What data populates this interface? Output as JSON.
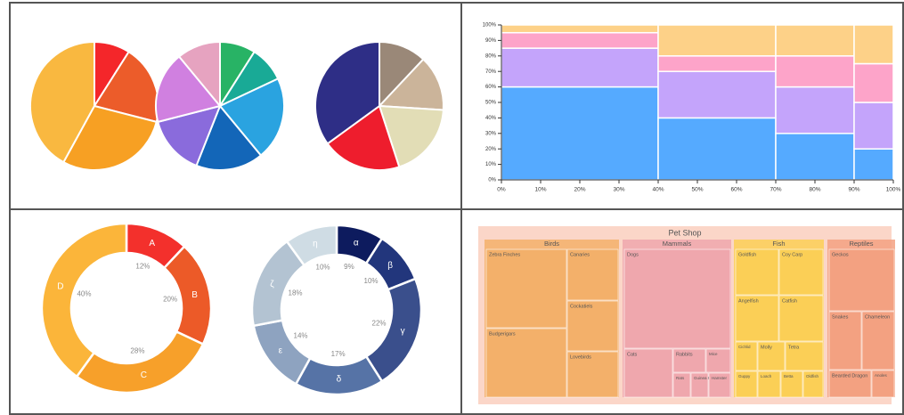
{
  "chart_data": [
    {
      "type": "pie",
      "title": "",
      "slices": [
        {
          "label": "",
          "value": 9,
          "color": "#f4262a"
        },
        {
          "label": "",
          "value": 20,
          "color": "#ec5c2a"
        },
        {
          "label": "",
          "value": 29,
          "color": "#f7a023"
        },
        {
          "label": "",
          "value": 42,
          "color": "#f9b840"
        }
      ]
    },
    {
      "type": "pie",
      "title": "",
      "slices": [
        {
          "label": "",
          "value": 9,
          "color": "#28b365"
        },
        {
          "label": "",
          "value": 9,
          "color": "#19aa96"
        },
        {
          "label": "",
          "value": 21,
          "color": "#2aa3e0"
        },
        {
          "label": "",
          "value": 17,
          "color": "#1366b8"
        },
        {
          "label": "",
          "value": 15,
          "color": "#8a6bdc"
        },
        {
          "label": "",
          "value": 18,
          "color": "#d080e0"
        },
        {
          "label": "",
          "value": 11,
          "color": "#e6a3c0"
        }
      ]
    },
    {
      "type": "pie",
      "title": "",
      "slices": [
        {
          "label": "",
          "value": 12,
          "color": "#9a8878"
        },
        {
          "label": "",
          "value": 14,
          "color": "#cbb49a"
        },
        {
          "label": "",
          "value": 19,
          "color": "#e2ddb6"
        },
        {
          "label": "",
          "value": 20,
          "color": "#ee1d2d"
        },
        {
          "label": "",
          "value": 35,
          "color": "#2e2e86"
        }
      ]
    },
    {
      "type": "bar",
      "subtype": "marimekko",
      "xlim": [
        0,
        100
      ],
      "ylim": [
        0,
        100
      ],
      "x_ticks": [
        "0%",
        "10%",
        "20%",
        "30%",
        "40%",
        "50%",
        "60%",
        "70%",
        "80%",
        "90%",
        "100%"
      ],
      "y_ticks": [
        "0%",
        "10%",
        "20%",
        "30%",
        "40%",
        "50%",
        "60%",
        "70%",
        "80%",
        "90%",
        "100%"
      ],
      "grid": false,
      "columns": [
        {
          "width": 40,
          "segments": [
            60,
            25,
            10,
            5
          ]
        },
        {
          "width": 30,
          "segments": [
            40,
            30,
            10,
            20
          ]
        },
        {
          "width": 20,
          "segments": [
            30,
            30,
            20,
            20
          ]
        },
        {
          "width": 10,
          "segments": [
            20,
            30,
            25,
            25
          ]
        }
      ],
      "segment_colors": [
        "#55aaff",
        "#c4a4fb",
        "#fda4c9",
        "#fdd188"
      ]
    },
    {
      "type": "pie",
      "subtype": "donut",
      "title": "",
      "slices": [
        {
          "label": "A",
          "value": 12,
          "pct": "12%",
          "color": "#f3302c"
        },
        {
          "label": "B",
          "value": 20,
          "pct": "20%",
          "color": "#ec5a28"
        },
        {
          "label": "C",
          "value": 28,
          "pct": "28%",
          "color": "#f7a02a"
        },
        {
          "label": "D",
          "value": 40,
          "pct": "40%",
          "color": "#fbb53a"
        }
      ]
    },
    {
      "type": "pie",
      "subtype": "donut",
      "title": "",
      "slices": [
        {
          "label": "α",
          "value": 9,
          "pct": "9%",
          "color": "#0d1b5e"
        },
        {
          "label": "β",
          "value": 10,
          "pct": "10%",
          "color": "#22367c"
        },
        {
          "label": "γ",
          "value": 22,
          "pct": "22%",
          "color": "#3a4f8c"
        },
        {
          "label": "δ",
          "value": 17,
          "pct": "17%",
          "color": "#5673a6"
        },
        {
          "label": "ε",
          "value": 14,
          "pct": "14%",
          "color": "#8ea3c0"
        },
        {
          "label": "ζ",
          "value": 18,
          "pct": "18%",
          "color": "#b3c3d2"
        },
        {
          "label": "η",
          "value": 10,
          "pct": "10%",
          "color": "#cfdce4"
        }
      ]
    },
    {
      "type": "treemap",
      "title": "Pet Shop",
      "groups": [
        {
          "name": "Birds",
          "color": "#f3b06a",
          "items": [
            "Zebra Finches",
            "Canaries",
            "Cockatiels",
            "Budgerigars",
            "Lovebirds"
          ]
        },
        {
          "name": "Mammals",
          "color": "#efa7ad",
          "items": [
            "Dogs",
            "Cats",
            "Rabbits",
            "Mice",
            "Rats",
            "Guinea Pig",
            "Hamster"
          ]
        },
        {
          "name": "Fish",
          "color": "#fbcf56",
          "items": [
            "Goldfish",
            "Coy Carp",
            "Angelfish",
            "Catfish",
            "Cichlid",
            "Molly",
            "Tetra",
            "Guppy",
            "Loach",
            "Betta",
            "Oldfish"
          ]
        },
        {
          "name": "Reptiles",
          "color": "#f3a181",
          "items": [
            "Geckos",
            "Snakes",
            "Chameleon",
            "Bearded Dragon",
            "Anoles"
          ]
        }
      ]
    }
  ]
}
